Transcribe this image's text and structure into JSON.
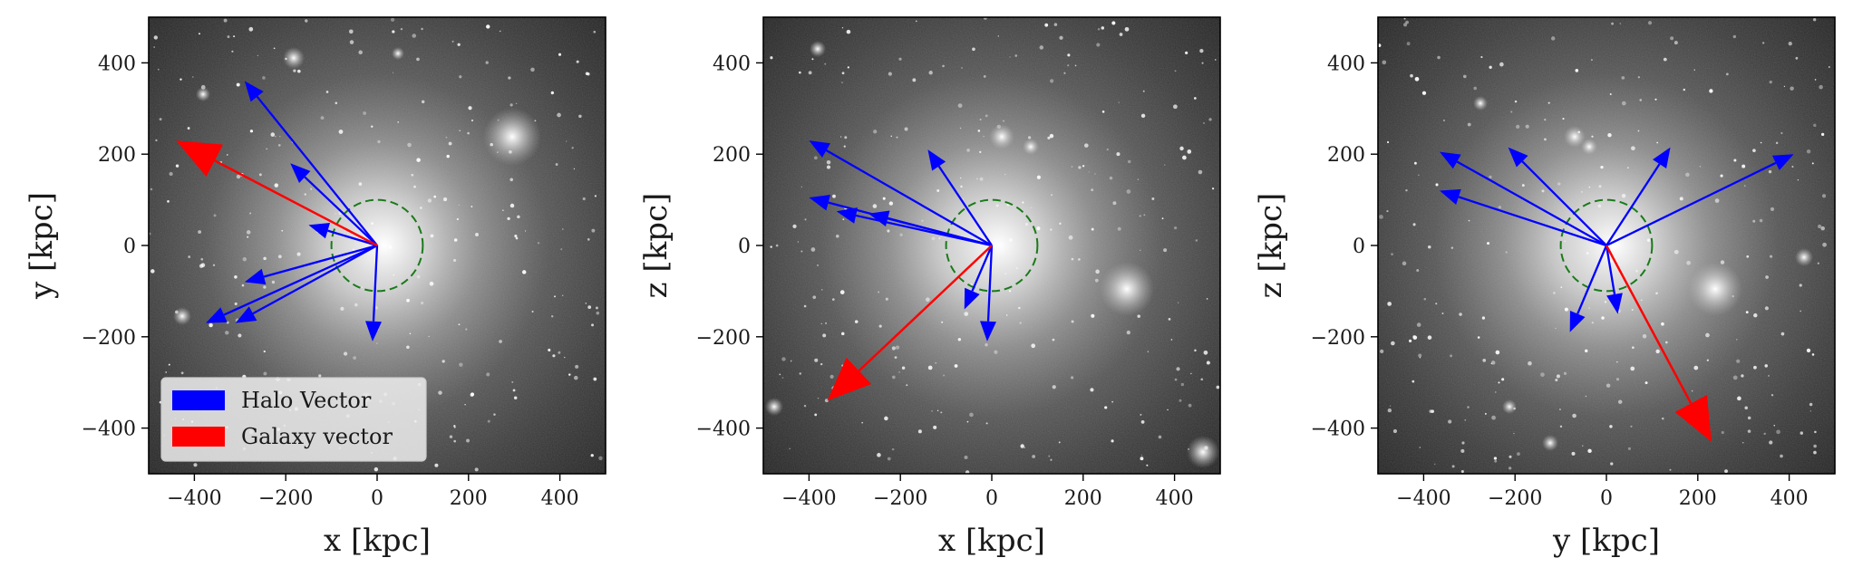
{
  "chart_data": [
    {
      "type": "vector-field",
      "xlabel": "x [kpc]",
      "ylabel": "y [kpc]",
      "xlim": [
        -500,
        500
      ],
      "ylim": [
        -500,
        500
      ],
      "ticks": [
        -400,
        -200,
        0,
        200,
        400
      ],
      "circle": {
        "center": [
          0,
          0
        ],
        "radius": 100,
        "color": "#1a7a1a",
        "style": "dashed"
      },
      "halo_vectors": [
        [
          -290,
          360
        ],
        [
          -190,
          180
        ],
        [
          -150,
          45
        ],
        [
          -290,
          -80
        ],
        [
          -375,
          -170
        ],
        [
          -310,
          -170
        ],
        [
          -10,
          -210
        ]
      ],
      "galaxy_vector": [
        -440,
        230
      ],
      "legend": {
        "position": "lower-left",
        "entries": [
          {
            "label": "Halo Vector",
            "color": "#0000ff"
          },
          {
            "label": "Galaxy vector",
            "color": "#ff0000"
          }
        ]
      }
    },
    {
      "type": "vector-field",
      "xlabel": "x [kpc]",
      "ylabel": "z [kpc]",
      "xlim": [
        -500,
        500
      ],
      "ylim": [
        -500,
        500
      ],
      "ticks": [
        -400,
        -200,
        0,
        200,
        400
      ],
      "circle": {
        "center": [
          0,
          0
        ],
        "radius": 100,
        "color": "#1a7a1a",
        "style": "dashed"
      },
      "halo_vectors": [
        [
          -400,
          230
        ],
        [
          -400,
          105
        ],
        [
          -340,
          75
        ],
        [
          -270,
          70
        ],
        [
          -140,
          210
        ],
        [
          -60,
          -140
        ],
        [
          -10,
          -210
        ]
      ],
      "galaxy_vector": [
        -360,
        -340
      ]
    },
    {
      "type": "vector-field",
      "xlabel": "y [kpc]",
      "ylabel": "z [kpc]",
      "xlim": [
        -500,
        500
      ],
      "ylim": [
        -500,
        500
      ],
      "ticks": [
        -400,
        -200,
        0,
        200,
        400
      ],
      "circle": {
        "center": [
          0,
          0
        ],
        "radius": 100,
        "color": "#1a7a1a",
        "style": "dashed"
      },
      "halo_vectors": [
        [
          -365,
          205
        ],
        [
          -365,
          120
        ],
        [
          -215,
          215
        ],
        [
          140,
          215
        ],
        [
          410,
          200
        ],
        [
          -80,
          -190
        ],
        [
          25,
          -150
        ]
      ],
      "galaxy_vector": [
        230,
        -430
      ]
    }
  ],
  "colors": {
    "halo": "#0000ff",
    "galaxy": "#ff0000",
    "circle": "#1a7a1a"
  }
}
